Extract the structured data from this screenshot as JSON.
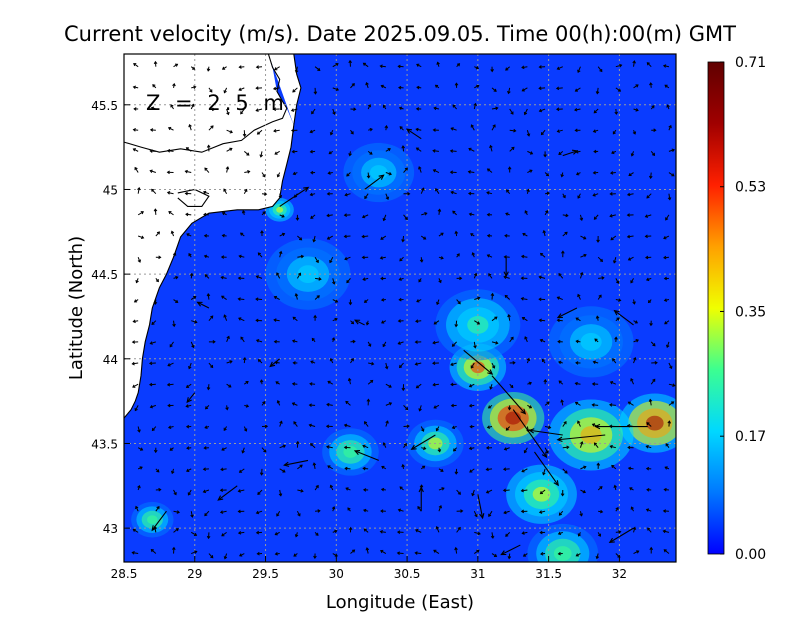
{
  "title": "Current velocity (m/s). Date 2025.09.05. Time 00(h):00(m) GMT",
  "depth_label": "Z = 2.5 m",
  "x_axis": {
    "label": "Longitude (East)",
    "range": [
      28.5,
      32.4
    ],
    "ticks": [
      {
        "v": 28.5,
        "label": "28.5"
      },
      {
        "v": 29,
        "label": "29"
      },
      {
        "v": 29.5,
        "label": "29.5"
      },
      {
        "v": 30,
        "label": "30"
      },
      {
        "v": 30.5,
        "label": "30.5"
      },
      {
        "v": 31,
        "label": "31"
      },
      {
        "v": 31.5,
        "label": "31.5"
      },
      {
        "v": 32,
        "label": "32"
      }
    ]
  },
  "y_axis": {
    "label": "Latitude (North)",
    "range": [
      42.8,
      45.8
    ],
    "ticks": [
      {
        "v": 43,
        "label": "43"
      },
      {
        "v": 43.5,
        "label": "43.5"
      },
      {
        "v": 44,
        "label": "44"
      },
      {
        "v": 44.5,
        "label": "44.5"
      },
      {
        "v": 45,
        "label": "45"
      },
      {
        "v": 45.5,
        "label": "45.5"
      }
    ]
  },
  "colorbar": {
    "min": 0,
    "max": 0.71,
    "ticks": [
      {
        "v": 0.71,
        "label": "0.71"
      },
      {
        "v": 0.53,
        "label": "0.53"
      },
      {
        "v": 0.35,
        "label": "0.35"
      },
      {
        "v": 0.17,
        "label": "0.17"
      },
      {
        "v": 0.0,
        "label": "0.00"
      }
    ],
    "colors": [
      "#0000ff",
      "#0078ff",
      "#00d8ff",
      "#3cff90",
      "#f0ff00",
      "#ffa000",
      "#ff2000",
      "#a00000",
      "#600000"
    ]
  },
  "coastline": [
    [
      [
        28.5,
        45.28
      ],
      [
        28.62,
        45.25
      ],
      [
        28.75,
        45.22
      ],
      [
        28.9,
        45.24
      ],
      [
        29.05,
        45.22
      ],
      [
        29.2,
        45.27
      ],
      [
        29.33,
        45.29
      ],
      [
        29.42,
        45.35
      ],
      [
        29.55,
        45.4
      ],
      [
        29.62,
        45.42
      ],
      [
        29.65,
        45.48
      ],
      [
        29.62,
        45.52
      ],
      [
        29.58,
        45.58
      ],
      [
        29.6,
        45.65
      ],
      [
        29.55,
        45.72
      ],
      [
        29.52,
        45.8
      ]
    ],
    [
      [
        29.7,
        45.38
      ],
      [
        29.68,
        45.25
      ],
      [
        29.65,
        45.15
      ],
      [
        29.62,
        45.05
      ],
      [
        29.6,
        44.95
      ],
      [
        29.55,
        44.9
      ],
      [
        29.45,
        44.88
      ],
      [
        29.3,
        44.88
      ],
      [
        29.1,
        44.86
      ],
      [
        28.98,
        44.8
      ],
      [
        28.9,
        44.72
      ],
      [
        28.85,
        44.6
      ],
      [
        28.8,
        44.5
      ],
      [
        28.75,
        44.42
      ],
      [
        28.7,
        44.3
      ],
      [
        28.68,
        44.2
      ],
      [
        28.65,
        44.1
      ],
      [
        28.63,
        44.0
      ],
      [
        28.62,
        43.9
      ],
      [
        28.6,
        43.8
      ],
      [
        28.58,
        43.75
      ],
      [
        28.55,
        43.7
      ],
      [
        28.5,
        43.65
      ]
    ],
    [
      [
        29.7,
        45.8
      ],
      [
        29.72,
        45.68
      ],
      [
        29.75,
        45.6
      ],
      [
        29.72,
        45.5
      ],
      [
        29.7,
        45.38
      ]
    ],
    [
      [
        28.88,
        44.98
      ],
      [
        29.0,
        45.0
      ],
      [
        29.1,
        44.96
      ],
      [
        29.05,
        44.9
      ],
      [
        28.95,
        44.9
      ],
      [
        28.88,
        44.95
      ]
    ]
  ],
  "speed_hotspots": [
    {
      "lon": 31.25,
      "lat": 43.65,
      "s": 0.62,
      "r": 0.22
    },
    {
      "lon": 31.0,
      "lat": 43.95,
      "s": 0.5,
      "r": 0.2
    },
    {
      "lon": 32.25,
      "lat": 43.62,
      "s": 0.6,
      "r": 0.25
    },
    {
      "lon": 31.8,
      "lat": 43.55,
      "s": 0.4,
      "r": 0.3
    },
    {
      "lon": 31.45,
      "lat": 43.2,
      "s": 0.38,
      "r": 0.25
    },
    {
      "lon": 30.7,
      "lat": 43.5,
      "s": 0.36,
      "r": 0.2
    },
    {
      "lon": 30.1,
      "lat": 43.45,
      "s": 0.3,
      "r": 0.2
    },
    {
      "lon": 29.6,
      "lat": 44.88,
      "s": 0.38,
      "r": 0.1
    },
    {
      "lon": 30.3,
      "lat": 45.1,
      "s": 0.22,
      "r": 0.25
    },
    {
      "lon": 31.0,
      "lat": 44.2,
      "s": 0.25,
      "r": 0.3
    },
    {
      "lon": 31.8,
      "lat": 44.1,
      "s": 0.22,
      "r": 0.3
    },
    {
      "lon": 28.7,
      "lat": 43.05,
      "s": 0.3,
      "r": 0.15
    },
    {
      "lon": 29.8,
      "lat": 44.5,
      "s": 0.18,
      "r": 0.3
    },
    {
      "lon": 31.6,
      "lat": 42.85,
      "s": 0.3,
      "r": 0.25
    }
  ],
  "vectors": [
    {
      "lon": 31.25,
      "lat": 43.7,
      "u": 0.35,
      "v": -0.5
    },
    {
      "lon": 31.1,
      "lat": 43.9,
      "u": 0.35,
      "v": -0.4
    },
    {
      "lon": 30.9,
      "lat": 44.05,
      "u": 0.3,
      "v": -0.25
    },
    {
      "lon": 31.4,
      "lat": 43.45,
      "u": 0.25,
      "v": -0.35
    },
    {
      "lon": 31.9,
      "lat": 43.55,
      "u": -0.5,
      "v": -0.05
    },
    {
      "lon": 32.2,
      "lat": 43.6,
      "u": -0.55,
      "v": 0.0
    },
    {
      "lon": 31.6,
      "lat": 43.55,
      "u": -0.35,
      "v": 0.05
    },
    {
      "lon": 30.7,
      "lat": 43.55,
      "u": -0.25,
      "v": -0.15
    },
    {
      "lon": 30.3,
      "lat": 43.4,
      "u": -0.25,
      "v": 0.1
    },
    {
      "lon": 29.8,
      "lat": 43.4,
      "u": -0.25,
      "v": -0.05
    },
    {
      "lon": 29.3,
      "lat": 43.25,
      "u": -0.2,
      "v": -0.15
    },
    {
      "lon": 28.8,
      "lat": 43.1,
      "u": -0.15,
      "v": -0.2
    },
    {
      "lon": 29.6,
      "lat": 44.9,
      "u": 0.3,
      "v": 0.2
    },
    {
      "lon": 30.2,
      "lat": 45.0,
      "u": 0.2,
      "v": 0.15
    },
    {
      "lon": 30.6,
      "lat": 45.3,
      "u": -0.15,
      "v": 0.1
    },
    {
      "lon": 31.6,
      "lat": 45.2,
      "u": 0.15,
      "v": 0.05
    },
    {
      "lon": 31.2,
      "lat": 44.6,
      "u": 0.0,
      "v": -0.2
    },
    {
      "lon": 31.7,
      "lat": 44.3,
      "u": -0.2,
      "v": -0.1
    },
    {
      "lon": 32.1,
      "lat": 44.2,
      "u": -0.2,
      "v": 0.15
    },
    {
      "lon": 30.2,
      "lat": 44.2,
      "u": -0.1,
      "v": 0.05
    },
    {
      "lon": 29.6,
      "lat": 44.0,
      "u": -0.1,
      "v": -0.08
    },
    {
      "lon": 29.0,
      "lat": 43.8,
      "u": -0.08,
      "v": -0.1
    },
    {
      "lon": 29.1,
      "lat": 44.3,
      "u": -0.12,
      "v": 0.06
    },
    {
      "lon": 30.6,
      "lat": 43.1,
      "u": 0.0,
      "v": 0.25
    },
    {
      "lon": 31.0,
      "lat": 43.2,
      "u": 0.05,
      "v": -0.25
    },
    {
      "lon": 32.1,
      "lat": 43.0,
      "u": -0.25,
      "v": -0.15
    },
    {
      "lon": 31.3,
      "lat": 42.9,
      "u": -0.2,
      "v": -0.1
    }
  ]
}
